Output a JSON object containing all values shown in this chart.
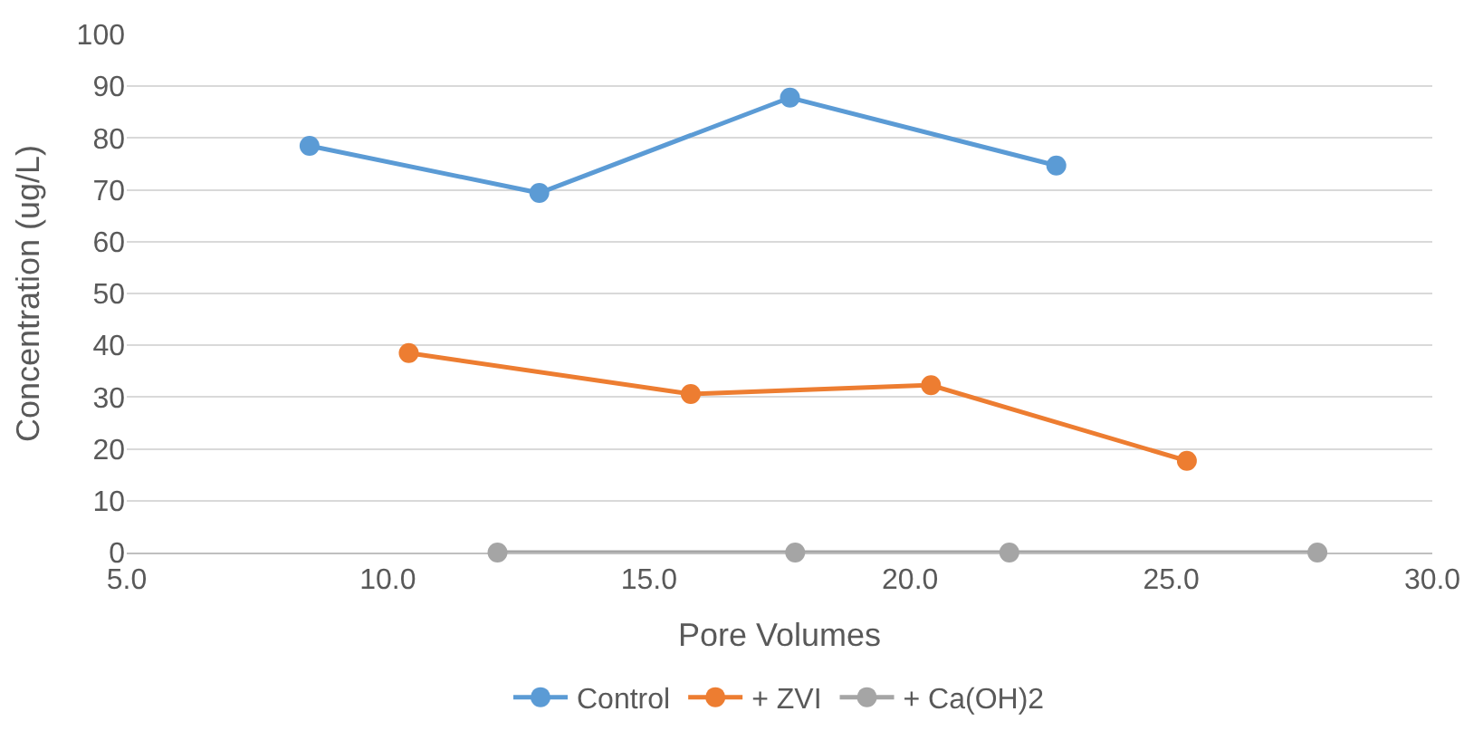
{
  "chart_data": {
    "type": "line",
    "xlabel": "Pore Volumes",
    "ylabel": "Concentration (ug/L)",
    "xlim": [
      5,
      30
    ],
    "xticks": [
      {
        "value": 5,
        "label": "5.0"
      },
      {
        "value": 10,
        "label": "10.0"
      },
      {
        "value": 15,
        "label": "15.0"
      },
      {
        "value": 20,
        "label": "20.0"
      },
      {
        "value": 25,
        "label": "25.0"
      },
      {
        "value": 30,
        "label": "30.0"
      }
    ],
    "ylim": [
      0,
      100
    ],
    "yticks": [
      0,
      10,
      20,
      30,
      40,
      50,
      60,
      70,
      80,
      90,
      100
    ],
    "grid": "y",
    "legend": "bottom",
    "marker": "circle",
    "line_style": "solid",
    "series": [
      {
        "name": "Control",
        "color": "#5b9bd5",
        "x": [
          8.5,
          12.9,
          17.7,
          22.8
        ],
        "values": [
          78.5,
          69.4,
          87.8,
          74.7
        ]
      },
      {
        "name": "+ ZVI",
        "color": "#ed7d31",
        "x": [
          10.4,
          15.8,
          20.4,
          25.3
        ],
        "values": [
          38.5,
          30.6,
          32.3,
          17.7
        ]
      },
      {
        "name": "+ Ca(OH)2",
        "color": "#a5a5a5",
        "x": [
          12.1,
          17.8,
          21.9,
          27.8
        ],
        "values": [
          0,
          0,
          0,
          0
        ]
      }
    ]
  }
}
